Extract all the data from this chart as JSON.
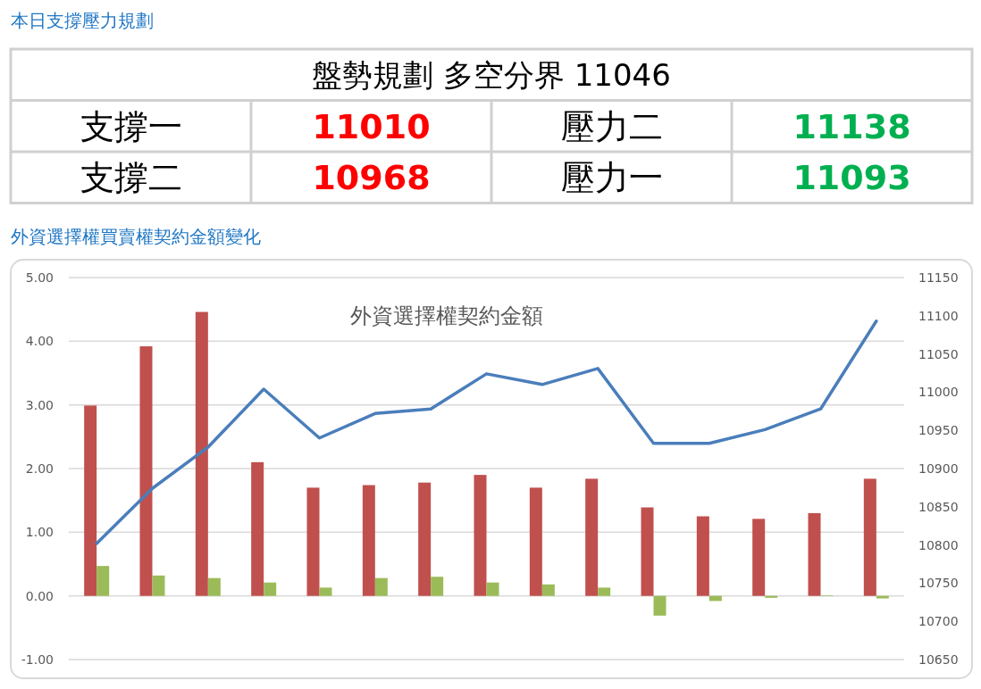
{
  "chart_data": [
    {
      "type": "other",
      "title": "本日支撐壓力規劃",
      "annotations": [
        "盤勢規劃 多空分界 11046",
        "支撐一",
        "11010",
        "壓力二",
        "11138",
        "支撐二",
        "10968",
        "壓力一",
        "11093"
      ],
      "colors": [
        "#000000",
        "#000000",
        "#ff0000",
        "#000000",
        "#00b050",
        "#000000",
        "#ff0000",
        "#000000",
        "#00b050"
      ]
    },
    {
      "type": "bar",
      "subtitle": "外資選擇權買賣權契約金額變化",
      "title": "外資選擇權契約金額",
      "categories": [
        null,
        null,
        null,
        null,
        null,
        null,
        null,
        null,
        null,
        null,
        null,
        null,
        null,
        null,
        null
      ],
      "series": [
        {
          "color": "#c0504d",
          "values": [
            2.99,
            3.92,
            4.46,
            2.1,
            1.7,
            1.74,
            1.78,
            1.9,
            1.7,
            1.84,
            1.39,
            1.25,
            1.21,
            1.3,
            1.84
          ]
        },
        {
          "color": "#9bbb59",
          "values": [
            0.47,
            0.32,
            0.28,
            0.21,
            0.13,
            0.28,
            0.3,
            0.21,
            0.18,
            0.13,
            -0.31,
            -0.08,
            -0.03,
            0.01,
            -0.04
          ]
        },
        {
          "type": "line",
          "axis": "y2",
          "color": "#4a7ebb",
          "values": [
            10802,
            10874,
            10928,
            11004,
            10940,
            10972,
            10978,
            11024,
            11010,
            11031,
            10933,
            10933,
            10951,
            10978,
            11093
          ]
        }
      ],
      "ylim": [
        -1,
        5
      ],
      "yticks": [
        {
          "value": -1,
          "label": "-1.00"
        },
        {
          "value": 0,
          "label": "0.00"
        },
        {
          "value": 1,
          "label": "1.00"
        },
        {
          "value": 2,
          "label": "2.00"
        },
        {
          "value": 3,
          "label": "3.00"
        },
        {
          "value": 4,
          "label": "4.00"
        },
        {
          "value": 5,
          "label": "5.00"
        }
      ],
      "y2lim": [
        10650,
        11150
      ],
      "y2ticks": [
        10650,
        10700,
        10750,
        10800,
        10850,
        10900,
        10950,
        11000,
        11050,
        11100,
        11150
      ],
      "grid": "y"
    }
  ]
}
